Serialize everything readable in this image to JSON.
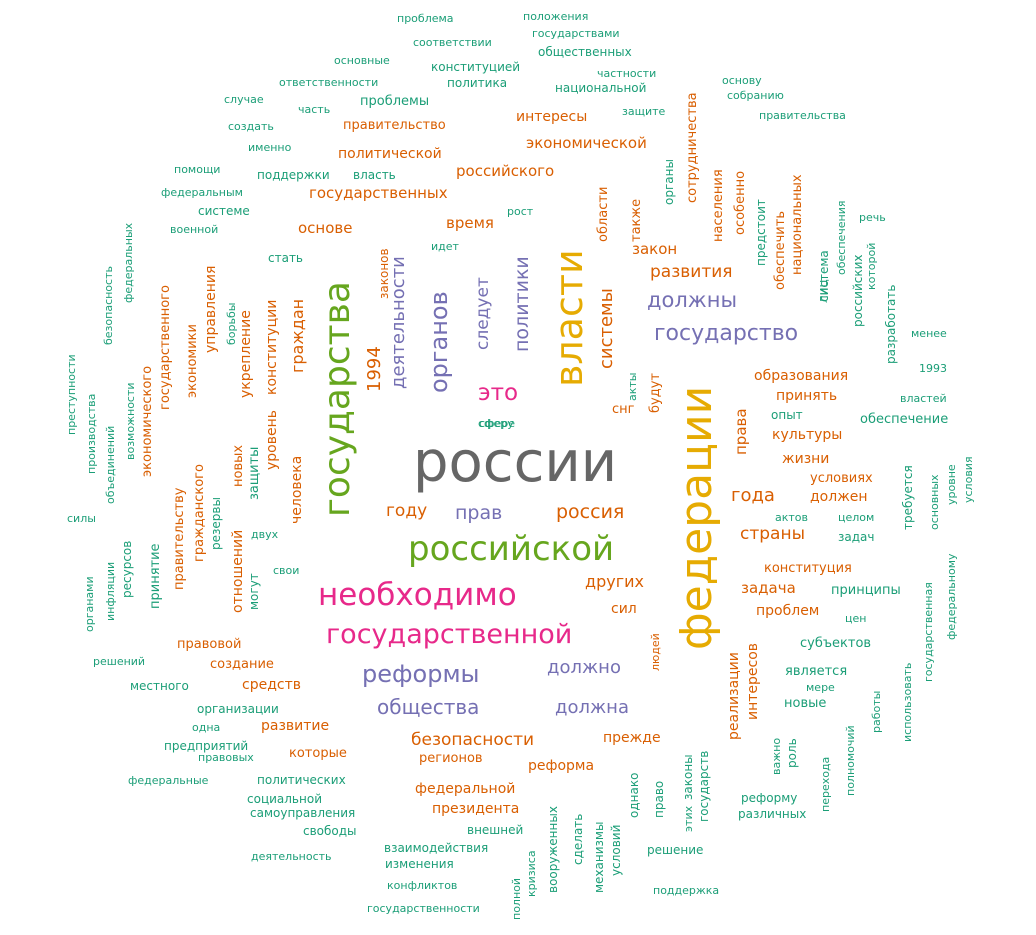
{
  "colors": {
    "c1": "#1b9e77",
    "c2": "#d95f02",
    "c3": "#7570b3",
    "c4": "#e7298a",
    "c5": "#66a61e",
    "c6": "#e6ab02",
    "c7": "#666666"
  },
  "words": [
    "россии",
    "федерации",
    "государства",
    "власти",
    "российской",
    "необходимо",
    "государственной",
    "органов",
    "реформы",
    "общества",
    "государство",
    "должны",
    "политики",
    "это",
    "деятельности",
    "следует",
    "1994",
    "системы",
    "должно",
    "должна",
    "безопасности",
    "года",
    "страны",
    "россия",
    "прав",
    "году",
    "государственных",
    "развития",
    "российского",
    "экономической",
    "интересы",
    "правительство",
    "политической",
    "основе",
    "время",
    "закон",
    "образования",
    "принять",
    "культуры",
    "жизни",
    "условиях",
    "должен",
    "конституция",
    "задача",
    "проблем",
    "других",
    "сил",
    "федеральной",
    "президента",
    "реформа",
    "регионов",
    "прежде",
    "правовой",
    "создание",
    "средств",
    "развитие",
    "которые",
    "граждан",
    "конституции",
    "уровень",
    "человека",
    "укрепление",
    "управления",
    "экономики",
    "государственного",
    "гражданского",
    "правительству",
    "отношений",
    "права",
    "снг",
    "будут",
    "области",
    "также",
    "населения",
    "обеспечить",
    "особенно",
    "национальных",
    "сотрудничества",
    "органы",
    "проблемы",
    "поддержки",
    "власть",
    "законов",
    "политических",
    "социальной",
    "самоуправления",
    "свободы",
    "внешней",
    "взаимодействия",
    "изменения",
    "конфликтов",
    "государственности",
    "вооруженных",
    "сделать",
    "механизмы",
    "условий",
    "однако",
    "право",
    "законы",
    "государств",
    "реализации",
    "интересов",
    "является",
    "новые",
    "субъектов",
    "принципы",
    "цен",
    "опыт",
    "обеспечение",
    "экономического",
    "принятие",
    "ресурсов",
    "новых",
    "защиты",
    "резервы",
    "могут",
    "двух",
    "свои",
    "сферу",
    "идет",
    "рост",
    "проблема",
    "положения",
    "государствами",
    "соответствии",
    "общественных",
    "основные",
    "конституцией",
    "ответственности",
    "политика",
    "национальной",
    "частности",
    "основу",
    "собранию",
    "правительства",
    "случае",
    "создать",
    "часть",
    "защите",
    "именно",
    "помощи",
    "федеральным",
    "системе",
    "военной",
    "стать",
    "федеральных",
    "безопасность",
    "борьбы",
    "преступности",
    "производства",
    "возможности",
    "объединений",
    "силы",
    "органами",
    "инфляции",
    "решений",
    "местного",
    "организации",
    "одна",
    "предприятий",
    "правовых",
    "федеральные",
    "деятельность",
    "полной",
    "кризиса",
    "поддержка",
    "решение",
    "этих",
    "перехода",
    "полномочий",
    "работы",
    "использовать",
    "различных",
    "реформу",
    "важно",
    "роль",
    "мере",
    "актов",
    "целом",
    "задач",
    "требуется",
    "основных",
    "уровне",
    "условия",
    "государственная",
    "федеральному",
    "1993",
    "властей",
    "менее",
    "разработать",
    "российских",
    "лиц",
    "обеспечения",
    "которой",
    "речь",
    "предстоит",
    "система",
    "акты",
    "сфере",
    "людей"
  ]
}
